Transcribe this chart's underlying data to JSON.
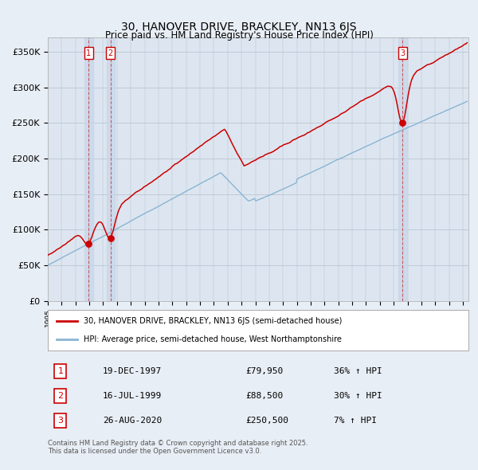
{
  "title1": "30, HANOVER DRIVE, BRACKLEY, NN13 6JS",
  "title2": "Price paid vs. HM Land Registry's House Price Index (HPI)",
  "ylabel_ticks": [
    "£0",
    "£50K",
    "£100K",
    "£150K",
    "£200K",
    "£250K",
    "£300K",
    "£350K"
  ],
  "ytick_vals": [
    0,
    50000,
    100000,
    150000,
    200000,
    250000,
    300000,
    350000
  ],
  "ylim": [
    0,
    370000
  ],
  "legend_line1": "30, HANOVER DRIVE, BRACKLEY, NN13 6JS (semi-detached house)",
  "legend_line2": "HPI: Average price, semi-detached house, West Northamptonshire",
  "sale_color": "#cc0000",
  "hpi_color": "#8ab4d4",
  "background_color": "#e8eef5",
  "plot_bg_color": "#dde6f0",
  "annotations": [
    {
      "num": 1,
      "date": "19-DEC-1997",
      "price": "£79,950",
      "pct": "36% ↑ HPI",
      "year": 1997.96
    },
    {
      "num": 2,
      "date": "16-JUL-1999",
      "price": "£88,500",
      "pct": "30% ↑ HPI",
      "year": 1999.54
    },
    {
      "num": 3,
      "date": "26-AUG-2020",
      "price": "£250,500",
      "pct": "7% ↑ HPI",
      "year": 2020.65
    }
  ],
  "sale_prices": [
    79950,
    88500,
    250500
  ],
  "copyright": "Contains HM Land Registry data © Crown copyright and database right 2025.\nThis data is licensed under the Open Government Licence v3.0."
}
